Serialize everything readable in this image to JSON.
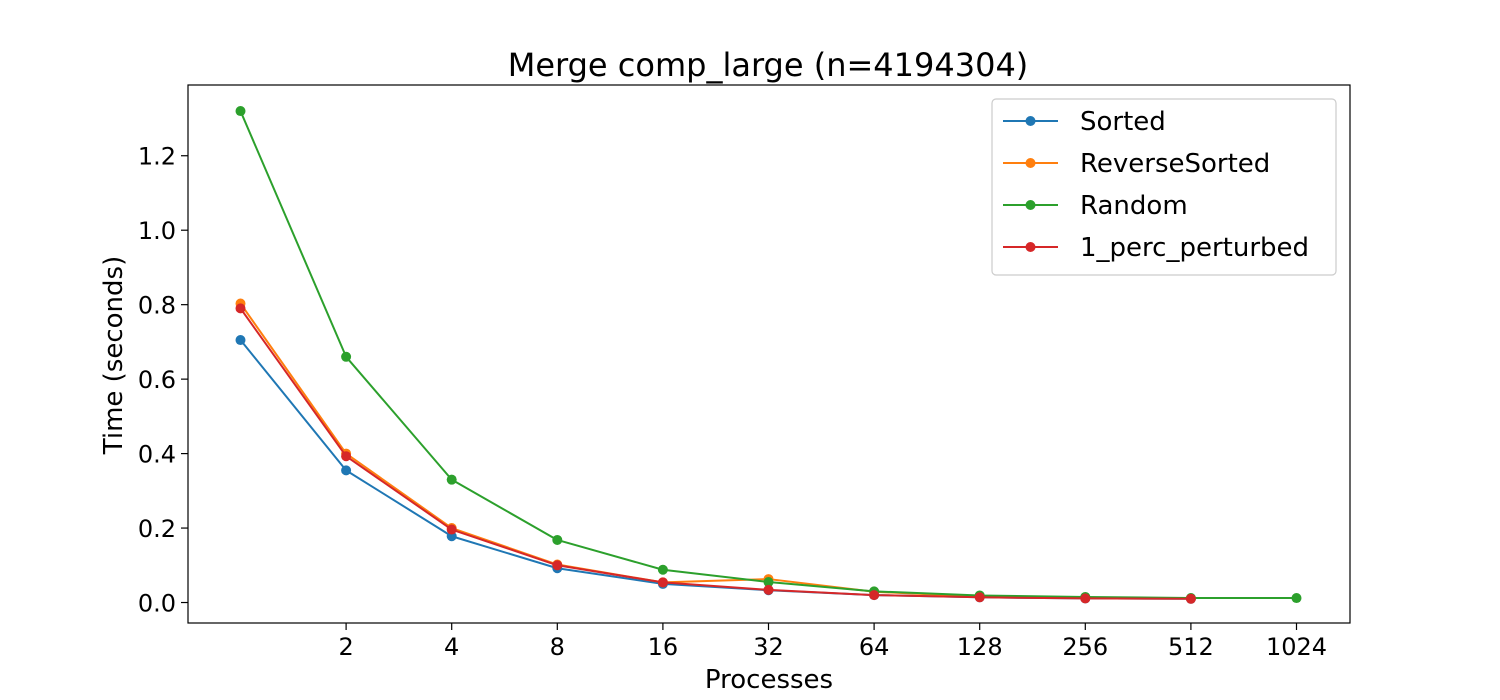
{
  "chart_data": {
    "type": "line",
    "title": "Merge comp_large (n=4194304)",
    "xlabel": "Processes",
    "ylabel": "Time (seconds)",
    "x_scale": "log2",
    "x": [
      1,
      2,
      4,
      8,
      16,
      32,
      64,
      128,
      256,
      512,
      1024
    ],
    "x_tick_values": [
      2,
      4,
      8,
      16,
      32,
      64,
      128,
      256,
      512,
      1024
    ],
    "x_tick_labels": [
      "2",
      "4",
      "8",
      "16",
      "32",
      "64",
      "128",
      "256",
      "512",
      "1024"
    ],
    "ylim": [
      -0.055,
      1.39
    ],
    "y_tick_values": [
      0.0,
      0.2,
      0.4,
      0.6,
      0.8,
      1.0,
      1.2
    ],
    "y_tick_labels": [
      "0.0",
      "0.2",
      "0.4",
      "0.6",
      "0.8",
      "1.0",
      "1.2"
    ],
    "grid": false,
    "legend_position": "top-right",
    "series": [
      {
        "name": "Sorted",
        "color": "#1f77b4",
        "values": [
          0.705,
          0.355,
          0.178,
          0.092,
          0.05,
          0.033,
          0.02,
          0.014,
          0.011,
          0.01,
          null
        ]
      },
      {
        "name": "ReverseSorted",
        "color": "#ff7f0e",
        "values": [
          0.803,
          0.4,
          0.2,
          0.102,
          0.054,
          0.063,
          0.029,
          0.016,
          0.013,
          0.011,
          null
        ]
      },
      {
        "name": "Random",
        "color": "#2ca02c",
        "values": [
          1.32,
          0.66,
          0.33,
          0.168,
          0.088,
          0.055,
          0.03,
          0.019,
          0.015,
          0.012,
          0.012
        ]
      },
      {
        "name": "1_perc_perturbed",
        "color": "#d62728",
        "values": [
          0.79,
          0.393,
          0.196,
          0.1,
          0.054,
          0.034,
          0.02,
          0.014,
          0.011,
          0.01,
          null
        ]
      }
    ]
  }
}
